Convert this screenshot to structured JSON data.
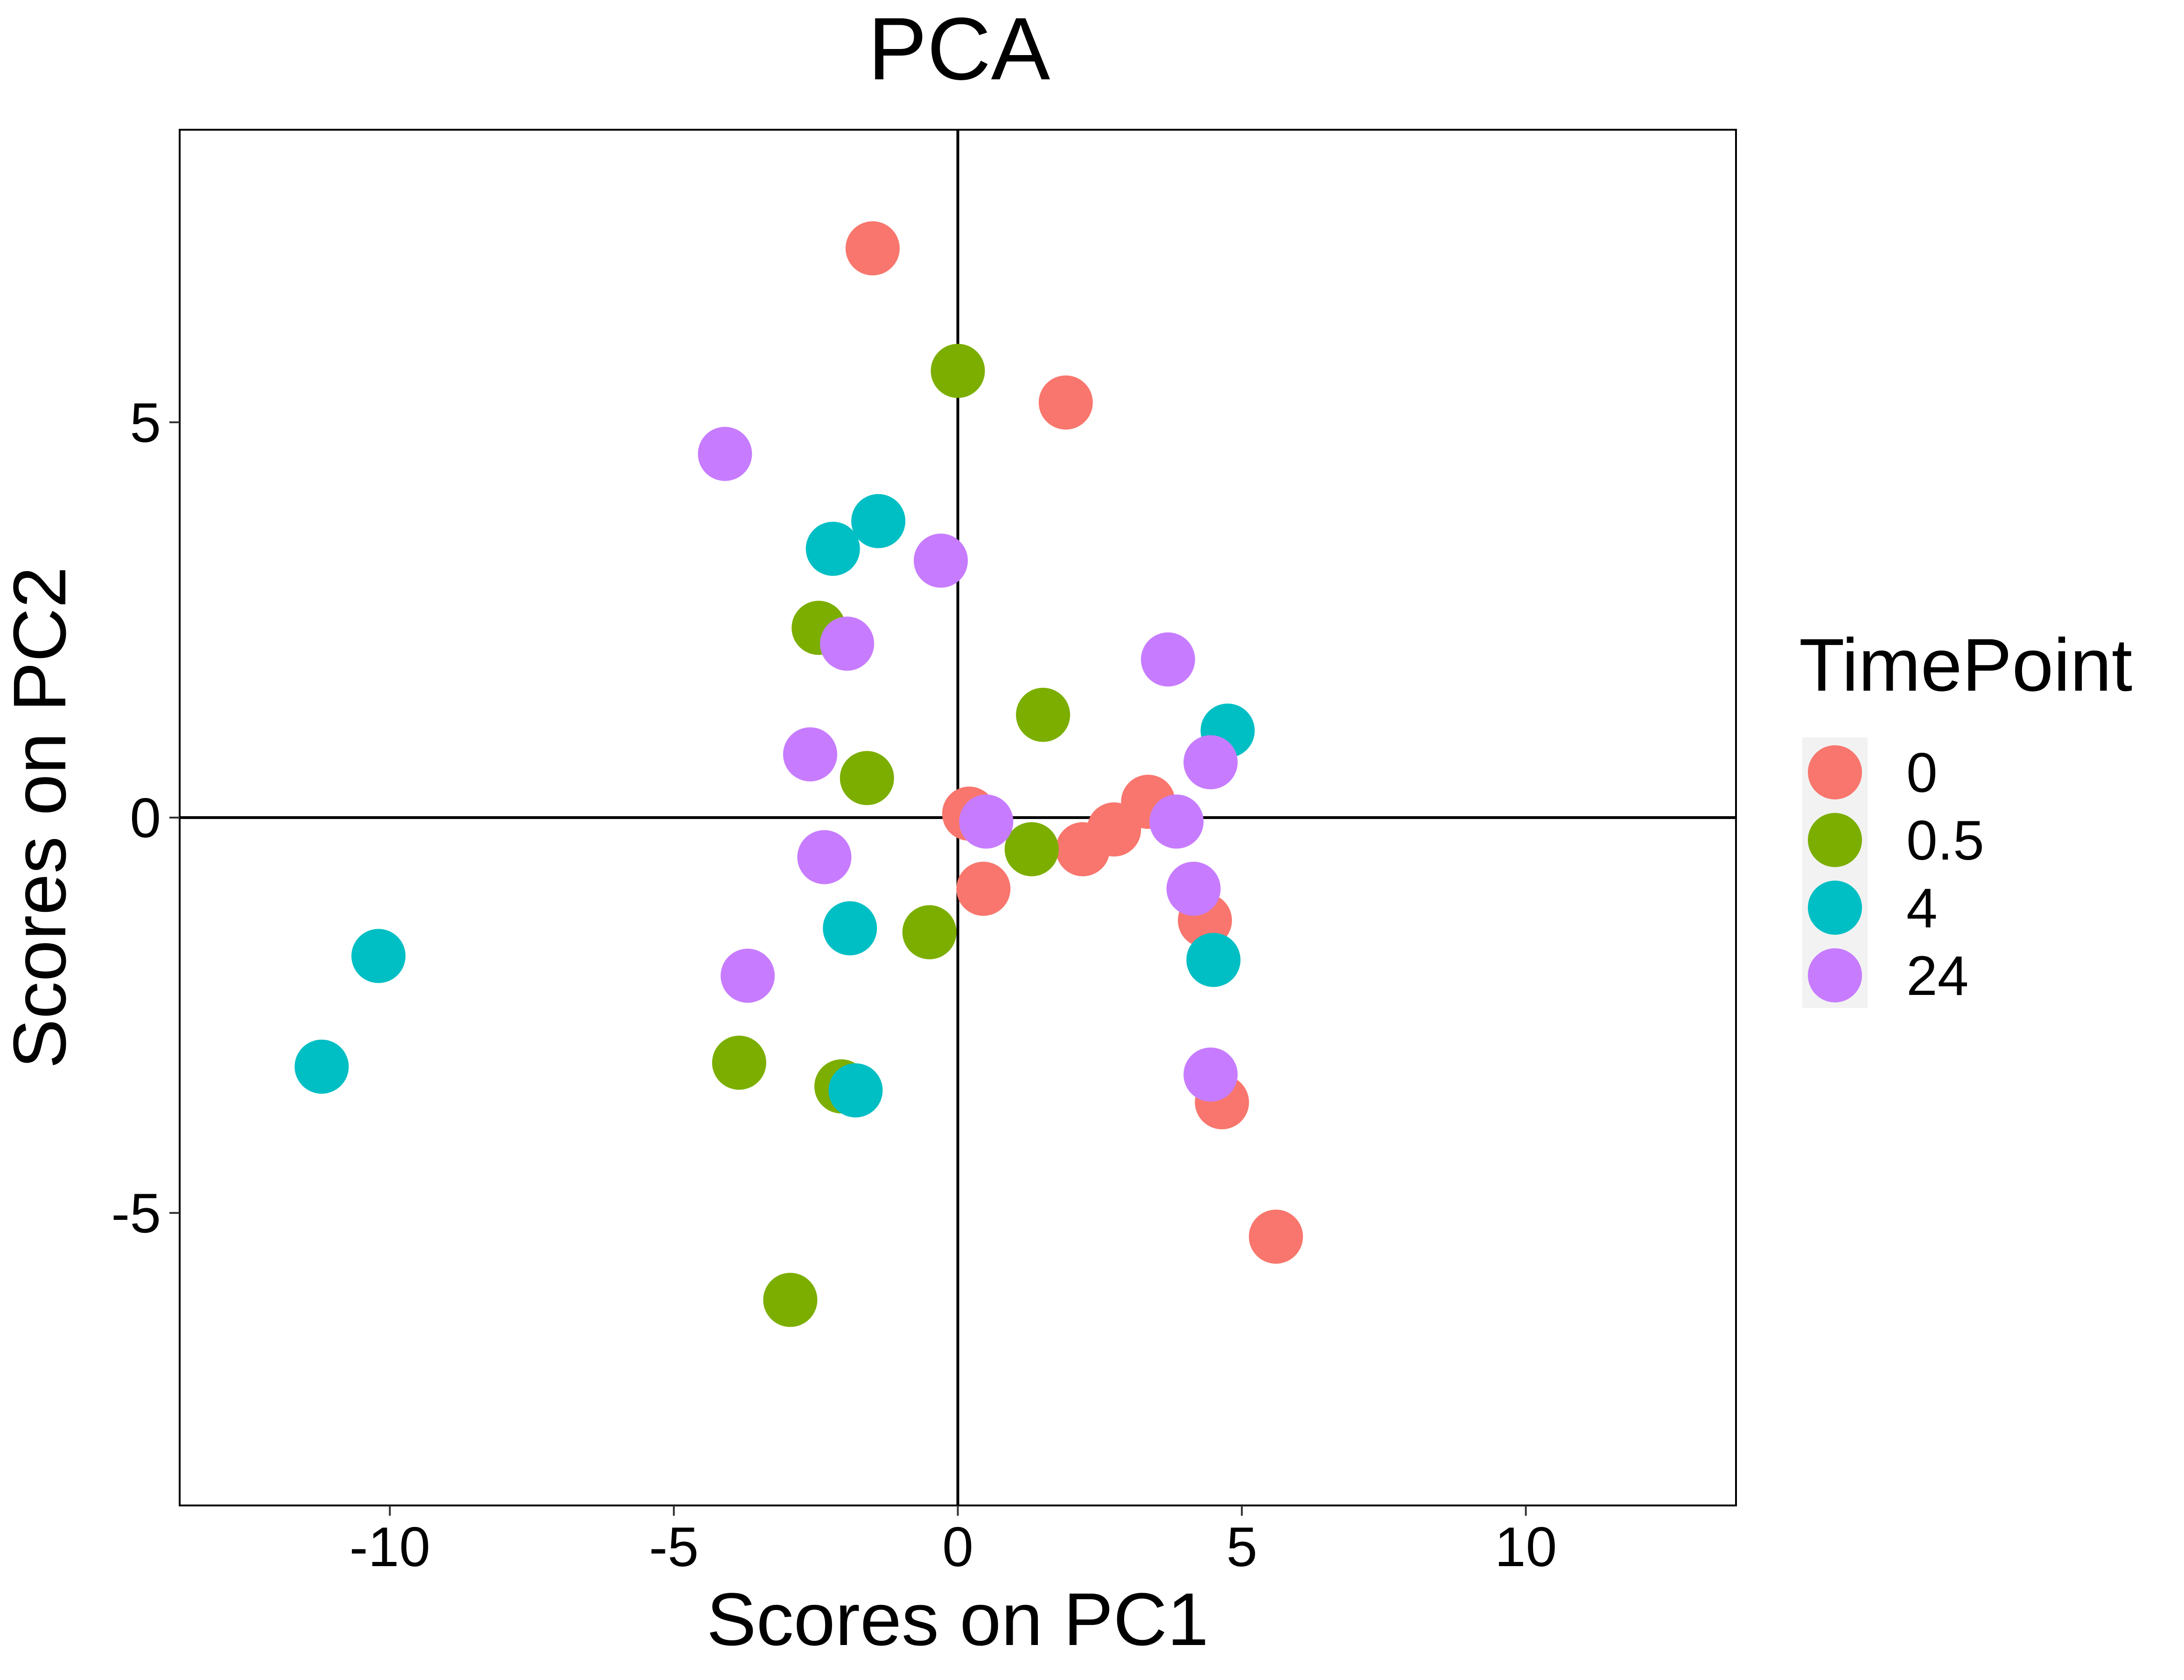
{
  "chart_data": {
    "type": "scatter",
    "title": "PCA",
    "xlabel": "Scores on PC1",
    "ylabel": "Scores on PC2",
    "xlim": [
      -13.7,
      13.7
    ],
    "ylim": [
      -8.7,
      8.7
    ],
    "x_ticks": [
      -10,
      -5,
      0,
      5,
      10
    ],
    "x_tick_labels": [
      "-10",
      "-5",
      "0",
      "5",
      "10"
    ],
    "y_ticks": [
      -5,
      0,
      5
    ],
    "y_tick_labels": [
      "-5",
      "0",
      "5"
    ],
    "reference_lines": {
      "x": 0,
      "y": 0
    },
    "grid": false,
    "legend": {
      "title": "TimePoint",
      "position": "right"
    },
    "series": [
      {
        "name": "0",
        "color": "#F8766D",
        "points": [
          [
            -1.5,
            7.2
          ],
          [
            1.9,
            5.25
          ],
          [
            0.2,
            0.05
          ],
          [
            0.45,
            -0.9
          ],
          [
            2.2,
            -0.4
          ],
          [
            2.75,
            -0.15
          ],
          [
            3.35,
            0.2
          ],
          [
            4.35,
            -1.3
          ],
          [
            4.65,
            -3.6
          ],
          [
            5.6,
            -5.3
          ]
        ]
      },
      {
        "name": "0.5",
        "color": "#7CAE00",
        "points": [
          [
            0.0,
            5.65
          ],
          [
            -2.45,
            2.4
          ],
          [
            1.5,
            1.3
          ],
          [
            -1.6,
            0.5
          ],
          [
            1.3,
            -0.4
          ],
          [
            -0.5,
            -1.45
          ],
          [
            -3.85,
            -3.1
          ],
          [
            -2.05,
            -3.4
          ],
          [
            -2.95,
            -6.1
          ]
        ]
      },
      {
        "name": "4",
        "color": "#00BFC4",
        "points": [
          [
            -1.4,
            3.75
          ],
          [
            -2.2,
            3.4
          ],
          [
            4.75,
            1.1
          ],
          [
            -1.9,
            -1.4
          ],
          [
            4.5,
            -1.8
          ],
          [
            -10.2,
            -1.75
          ],
          [
            -11.2,
            -3.15
          ],
          [
            -1.8,
            -3.45
          ]
        ]
      },
      {
        "name": "24",
        "color": "#C77CFF",
        "points": [
          [
            -4.1,
            4.6
          ],
          [
            -0.3,
            3.25
          ],
          [
            -1.95,
            2.2
          ],
          [
            3.7,
            2.0
          ],
          [
            4.45,
            0.7
          ],
          [
            -2.6,
            0.8
          ],
          [
            0.5,
            -0.05
          ],
          [
            3.85,
            -0.05
          ],
          [
            -2.35,
            -0.5
          ],
          [
            4.15,
            -0.9
          ],
          [
            -3.7,
            -2.0
          ],
          [
            4.45,
            -3.25
          ]
        ]
      }
    ]
  }
}
